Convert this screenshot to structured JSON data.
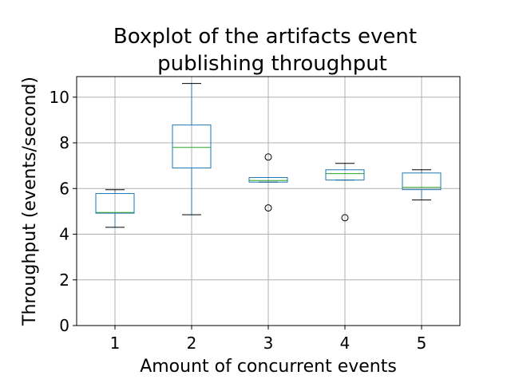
{
  "chart_data": {
    "type": "boxplot",
    "title_lines": [
      "Boxplot of the artifacts event",
      "publishing throughput"
    ],
    "xlabel": "Amount of concurrent events",
    "ylabel": "Throughput (events/second)",
    "ylim": [
      0,
      10.9
    ],
    "yticks": [
      0,
      2,
      4,
      6,
      8,
      10
    ],
    "grid": true,
    "categories": [
      "1",
      "2",
      "3",
      "4",
      "5"
    ],
    "boxes": [
      {
        "category": "1",
        "whisker_low": 4.3,
        "q1": 4.92,
        "median": 4.95,
        "q3": 5.78,
        "whisker_high": 5.95,
        "outliers": []
      },
      {
        "category": "2",
        "whisker_low": 4.85,
        "q1": 6.9,
        "median": 7.8,
        "q3": 8.78,
        "whisker_high": 10.6,
        "outliers": []
      },
      {
        "category": "3",
        "whisker_low": 6.28,
        "q1": 6.28,
        "median": 6.35,
        "q3": 6.48,
        "whisker_high": 6.48,
        "outliers": [
          7.38,
          5.15
        ]
      },
      {
        "category": "4",
        "whisker_low": 6.37,
        "q1": 6.37,
        "median": 6.65,
        "q3": 6.82,
        "whisker_high": 7.1,
        "outliers": [
          4.72
        ]
      },
      {
        "category": "5",
        "whisker_low": 5.5,
        "q1": 5.95,
        "median": 6.05,
        "q3": 6.68,
        "whisker_high": 6.82,
        "outliers": []
      }
    ],
    "colors": {
      "box": "#1f77b4",
      "median": "#2ca02c",
      "whisker": "#1f77b4",
      "cap": "#000000",
      "outlier": "#000000",
      "grid": "#b0b0b0"
    }
  }
}
